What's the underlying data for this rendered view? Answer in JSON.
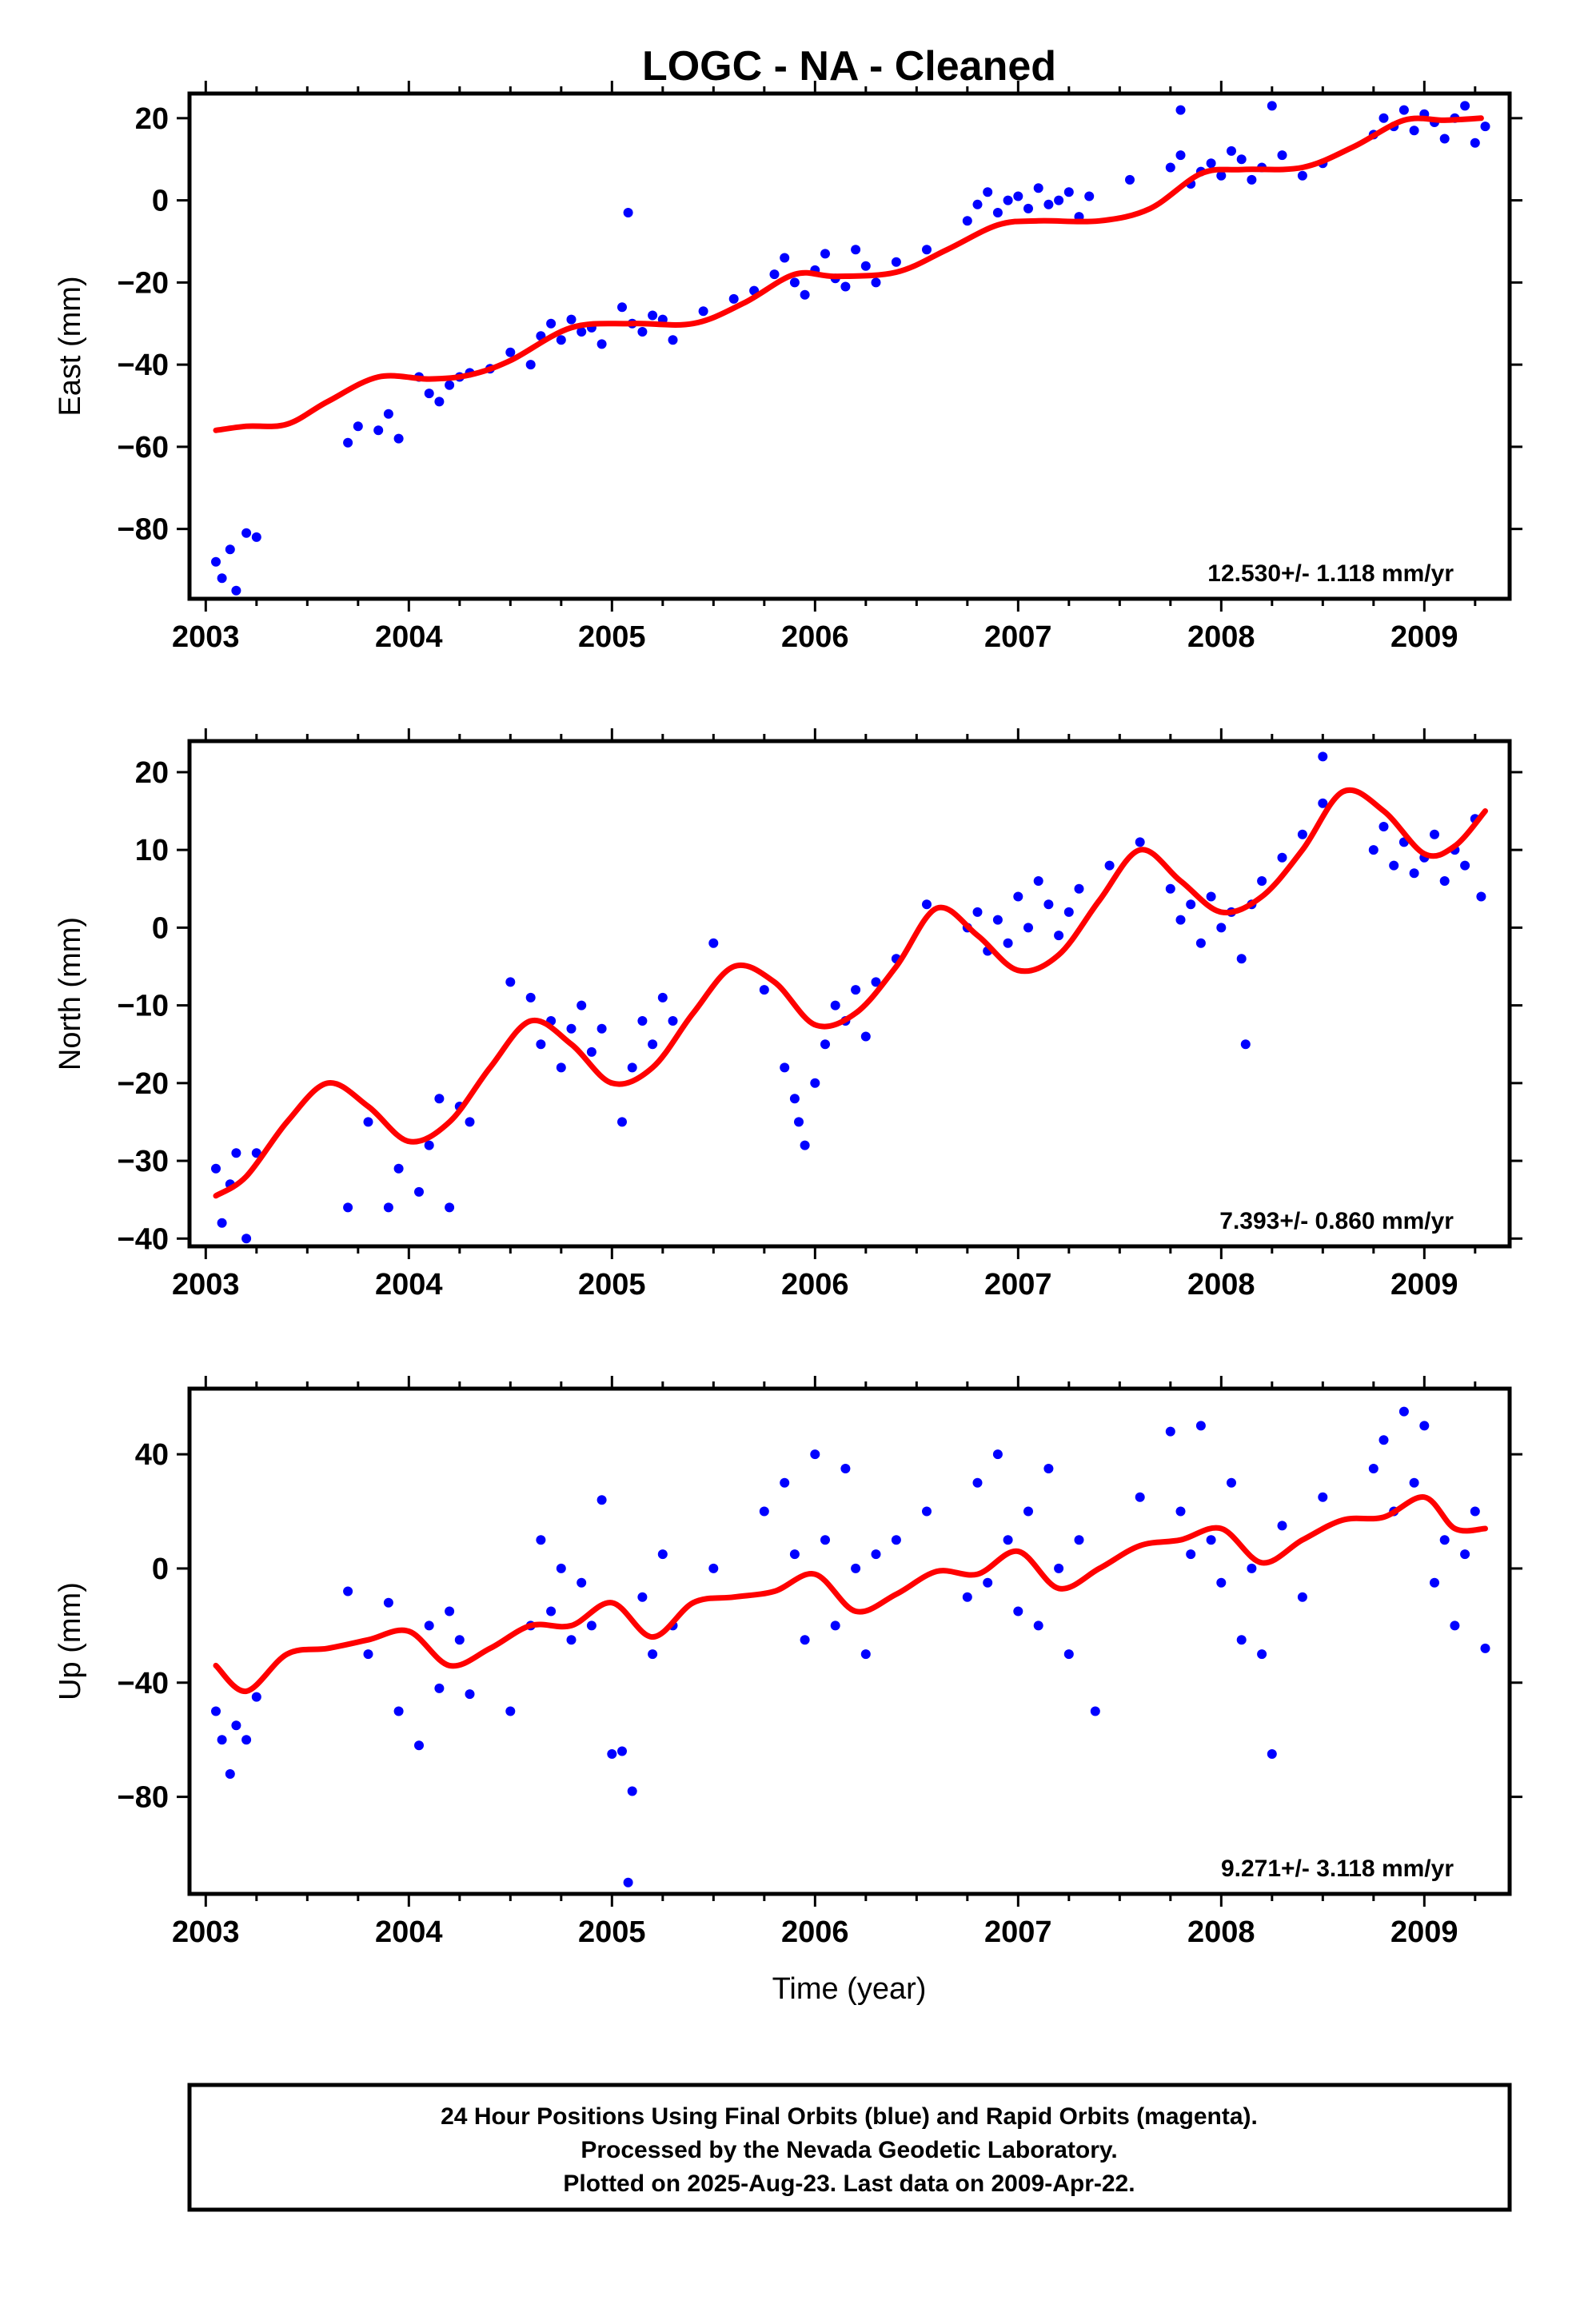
{
  "title": "LOGC  - NA - Cleaned",
  "x_axis_label": "Time (year)",
  "footer": {
    "line1": "24 Hour Positions Using Final Orbits (blue) and Rapid Orbits (magenta).",
    "line2": "Processed by the Nevada Geodetic Laboratory.",
    "line3": "Plotted on 2025-Aug-23. Last data on 2009-Apr-22."
  },
  "colors": {
    "points": "#0000ff",
    "model": "#ff0000",
    "frame": "#000000"
  },
  "chart_data": [
    {
      "type": "scatter",
      "ylabel": "East (mm)",
      "rate_label": "12.530+/- 1.118 mm/yr",
      "xlim": [
        2002.92,
        2009.42
      ],
      "ylim": [
        -97,
        26
      ],
      "xticks": [
        2003,
        2004,
        2005,
        2006,
        2007,
        2008,
        2009
      ],
      "yticks": [
        20,
        0,
        -20,
        -40,
        -60,
        -80
      ],
      "model": {
        "name": "model",
        "x": [
          2003.05,
          2003.2,
          2003.4,
          2003.6,
          2003.85,
          2004.1,
          2004.3,
          2004.5,
          2004.8,
          2005.1,
          2005.4,
          2005.65,
          2005.9,
          2006.1,
          2006.4,
          2006.65,
          2006.9,
          2007.1,
          2007.4,
          2007.65,
          2007.9,
          2008.1,
          2008.4,
          2008.65,
          2008.9,
          2009.1,
          2009.28
        ],
        "y": [
          -56,
          -55,
          -54.5,
          -49,
          -43,
          -43.5,
          -42.5,
          -39,
          -31,
          -30,
          -30,
          -25,
          -18,
          -18.5,
          -17.5,
          -12,
          -6,
          -5,
          -5,
          -2,
          6.5,
          7.5,
          8,
          13,
          19.5,
          19.5,
          20
        ]
      },
      "points": {
        "x": [
          2003.05,
          2003.08,
          2003.12,
          2003.15,
          2003.2,
          2003.25,
          2003.7,
          2003.75,
          2003.85,
          2003.9,
          2003.95,
          2004.05,
          2004.1,
          2004.15,
          2004.2,
          2004.25,
          2004.3,
          2004.4,
          2004.5,
          2004.6,
          2004.65,
          2004.7,
          2004.75,
          2004.8,
          2004.85,
          2004.9,
          2004.95,
          2005.05,
          2005.1,
          2005.15,
          2005.2,
          2005.25,
          2005.3,
          2005.45,
          2005.6,
          2005.7,
          2005.8,
          2005.85,
          2005.9,
          2005.95,
          2006.0,
          2006.05,
          2006.1,
          2006.15,
          2006.2,
          2006.25,
          2006.3,
          2006.4,
          2006.55,
          2006.75,
          2006.8,
          2006.85,
          2006.9,
          2006.95,
          2007.0,
          2007.05,
          2007.1,
          2007.15,
          2007.2,
          2007.25,
          2007.3,
          2007.35,
          2007.55,
          2007.75,
          2007.8,
          2007.85,
          2007.9,
          2007.95,
          2008.0,
          2008.05,
          2008.1,
          2008.15,
          2008.2,
          2008.3,
          2008.4,
          2008.5,
          2008.75,
          2008.8,
          2008.85,
          2008.9,
          2008.95,
          2009.0,
          2009.05,
          2009.1,
          2009.15,
          2009.2,
          2009.25,
          2009.3,
          2005.08,
          2007.8,
          2008.25
        ],
        "y": [
          -88,
          -92,
          -85,
          -95,
          -81,
          -82,
          -59,
          -55,
          -56,
          -52,
          -58,
          -43,
          -47,
          -49,
          -45,
          -43,
          -42,
          -41,
          -37,
          -40,
          -33,
          -30,
          -34,
          -29,
          -32,
          -31,
          -35,
          -26,
          -30,
          -32,
          -28,
          -29,
          -34,
          -27,
          -24,
          -22,
          -18,
          -14,
          -20,
          -23,
          -17,
          -13,
          -19,
          -21,
          -12,
          -16,
          -20,
          -15,
          -12,
          -5,
          -1,
          2,
          -3,
          0,
          1,
          -2,
          3,
          -1,
          0,
          2,
          -4,
          1,
          5,
          8,
          11,
          4,
          7,
          9,
          6,
          12,
          10,
          5,
          8,
          11,
          6,
          9,
          16,
          20,
          18,
          22,
          17,
          21,
          19,
          15,
          20,
          23,
          14,
          18,
          -3,
          22,
          23
        ]
      }
    },
    {
      "type": "scatter",
      "ylabel": "North (mm)",
      "rate_label": "7.393+/- 0.860 mm/yr",
      "xlim": [
        2002.92,
        2009.42
      ],
      "ylim": [
        -41,
        24
      ],
      "xticks": [
        2003,
        2004,
        2005,
        2006,
        2007,
        2008,
        2009
      ],
      "yticks": [
        20,
        10,
        0,
        -10,
        -20,
        -30,
        -40
      ],
      "model": {
        "name": "model",
        "x": [
          2003.05,
          2003.2,
          2003.4,
          2003.6,
          2003.8,
          2004.0,
          2004.2,
          2004.4,
          2004.6,
          2004.8,
          2005.0,
          2005.2,
          2005.4,
          2005.6,
          2005.8,
          2006.0,
          2006.2,
          2006.4,
          2006.6,
          2006.8,
          2007.0,
          2007.2,
          2007.4,
          2007.6,
          2007.8,
          2008.0,
          2008.2,
          2008.4,
          2008.6,
          2008.8,
          2009.0,
          2009.15,
          2009.3
        ],
        "y": [
          -34.5,
          -32,
          -25,
          -20,
          -23,
          -27.5,
          -25,
          -18,
          -12,
          -15,
          -20,
          -18,
          -11,
          -5,
          -7,
          -12.5,
          -11,
          -5,
          2.5,
          -1,
          -5.5,
          -3.5,
          3.5,
          10,
          6,
          2,
          4,
          10,
          17.5,
          15,
          9.5,
          10.5,
          15
        ]
      },
      "points": {
        "x": [
          2003.05,
          2003.08,
          2003.12,
          2003.15,
          2003.2,
          2003.25,
          2003.7,
          2003.8,
          2003.9,
          2003.95,
          2004.05,
          2004.1,
          2004.15,
          2004.2,
          2004.25,
          2004.3,
          2004.5,
          2004.6,
          2004.65,
          2004.7,
          2004.75,
          2004.8,
          2004.85,
          2004.9,
          2004.95,
          2005.05,
          2005.1,
          2005.15,
          2005.2,
          2005.25,
          2005.3,
          2005.5,
          2005.75,
          2005.85,
          2005.9,
          2005.92,
          2005.95,
          2006.0,
          2006.05,
          2006.1,
          2006.15,
          2006.2,
          2006.25,
          2006.3,
          2006.4,
          2006.55,
          2006.75,
          2006.8,
          2006.85,
          2006.9,
          2006.95,
          2007.0,
          2007.05,
          2007.1,
          2007.15,
          2007.2,
          2007.25,
          2007.3,
          2007.45,
          2007.6,
          2007.75,
          2007.8,
          2007.85,
          2007.9,
          2007.95,
          2008.0,
          2008.05,
          2008.1,
          2008.15,
          2008.2,
          2008.3,
          2008.4,
          2008.5,
          2008.75,
          2008.8,
          2008.85,
          2008.9,
          2008.95,
          2009.0,
          2009.05,
          2009.1,
          2009.15,
          2009.2,
          2009.25,
          2009.28,
          2008.12,
          2008.5
        ],
        "y": [
          -31,
          -38,
          -33,
          -29,
          -40,
          -29,
          -36,
          -25,
          -36,
          -31,
          -34,
          -28,
          -22,
          -36,
          -23,
          -25,
          -7,
          -9,
          -15,
          -12,
          -18,
          -13,
          -10,
          -16,
          -13,
          -25,
          -18,
          -12,
          -15,
          -9,
          -12,
          -2,
          -8,
          -18,
          -22,
          -25,
          -28,
          -20,
          -15,
          -10,
          -12,
          -8,
          -14,
          -7,
          -4,
          3,
          0,
          2,
          -3,
          1,
          -2,
          4,
          0,
          6,
          3,
          -1,
          2,
          5,
          8,
          11,
          5,
          1,
          3,
          -2,
          4,
          0,
          2,
          -4,
          3,
          6,
          9,
          12,
          16,
          10,
          13,
          8,
          11,
          7,
          9,
          12,
          6,
          10,
          8,
          14,
          4,
          -15,
          22
        ]
      }
    },
    {
      "type": "scatter",
      "ylabel": "Up (mm)",
      "rate_label": "9.271+/- 3.118 mm/yr",
      "xlim": [
        2002.92,
        2009.42
      ],
      "ylim": [
        -114,
        63
      ],
      "xticks": [
        2003,
        2004,
        2005,
        2006,
        2007,
        2008,
        2009
      ],
      "yticks": [
        40,
        0,
        -40,
        -80
      ],
      "model": {
        "name": "model",
        "x": [
          2003.05,
          2003.2,
          2003.4,
          2003.6,
          2003.8,
          2004.0,
          2004.2,
          2004.4,
          2004.6,
          2004.8,
          2005.0,
          2005.2,
          2005.4,
          2005.6,
          2005.8,
          2006.0,
          2006.2,
          2006.4,
          2006.6,
          2006.8,
          2007.0,
          2007.2,
          2007.4,
          2007.6,
          2007.8,
          2008.0,
          2008.2,
          2008.4,
          2008.6,
          2008.8,
          2009.0,
          2009.15,
          2009.3
        ],
        "y": [
          -34,
          -43,
          -30,
          -28,
          -25,
          -22,
          -34,
          -28,
          -20,
          -20,
          -12,
          -24,
          -12,
          -10,
          -8,
          -2,
          -15,
          -9,
          -1,
          -2,
          6,
          -7,
          0,
          8,
          10,
          14,
          2,
          10,
          17,
          18,
          25,
          14,
          14
        ]
      },
      "points": {
        "x": [
          2003.05,
          2003.08,
          2003.12,
          2003.15,
          2003.2,
          2003.25,
          2003.7,
          2003.8,
          2003.9,
          2003.95,
          2004.05,
          2004.1,
          2004.15,
          2004.2,
          2004.25,
          2004.3,
          2004.5,
          2004.6,
          2004.65,
          2004.7,
          2004.75,
          2004.8,
          2004.85,
          2004.9,
          2004.95,
          2005.0,
          2005.05,
          2005.08,
          2005.1,
          2005.15,
          2005.2,
          2005.25,
          2005.3,
          2005.5,
          2005.75,
          2005.85,
          2005.9,
          2005.95,
          2006.0,
          2006.05,
          2006.1,
          2006.15,
          2006.2,
          2006.25,
          2006.3,
          2006.4,
          2006.55,
          2006.75,
          2006.8,
          2006.85,
          2006.9,
          2006.95,
          2007.0,
          2007.05,
          2007.1,
          2007.15,
          2007.2,
          2007.25,
          2007.3,
          2007.38,
          2007.6,
          2007.75,
          2007.8,
          2007.85,
          2007.9,
          2007.95,
          2008.0,
          2008.05,
          2008.1,
          2008.15,
          2008.2,
          2008.25,
          2008.3,
          2008.4,
          2008.5,
          2008.75,
          2008.8,
          2008.85,
          2008.9,
          2008.95,
          2009.0,
          2009.05,
          2009.1,
          2009.15,
          2009.2,
          2009.25,
          2009.3
        ],
        "y": [
          -50,
          -60,
          -72,
          -55,
          -60,
          -45,
          -8,
          -30,
          -12,
          -50,
          -62,
          -20,
          -42,
          -15,
          -25,
          -44,
          -50,
          -20,
          10,
          -15,
          0,
          -25,
          -5,
          -20,
          24,
          -65,
          -64,
          -110,
          -78,
          -10,
          -30,
          5,
          -20,
          0,
          20,
          30,
          5,
          -25,
          40,
          10,
          -20,
          35,
          0,
          -30,
          5,
          10,
          20,
          -10,
          30,
          -5,
          40,
          10,
          -15,
          20,
          -20,
          35,
          0,
          -30,
          10,
          -50,
          25,
          48,
          20,
          5,
          50,
          10,
          -5,
          30,
          -25,
          0,
          -30,
          -65,
          15,
          -10,
          25,
          35,
          45,
          20,
          55,
          30,
          50,
          -5,
          10,
          -20,
          5,
          20,
          -28
        ]
      }
    }
  ]
}
